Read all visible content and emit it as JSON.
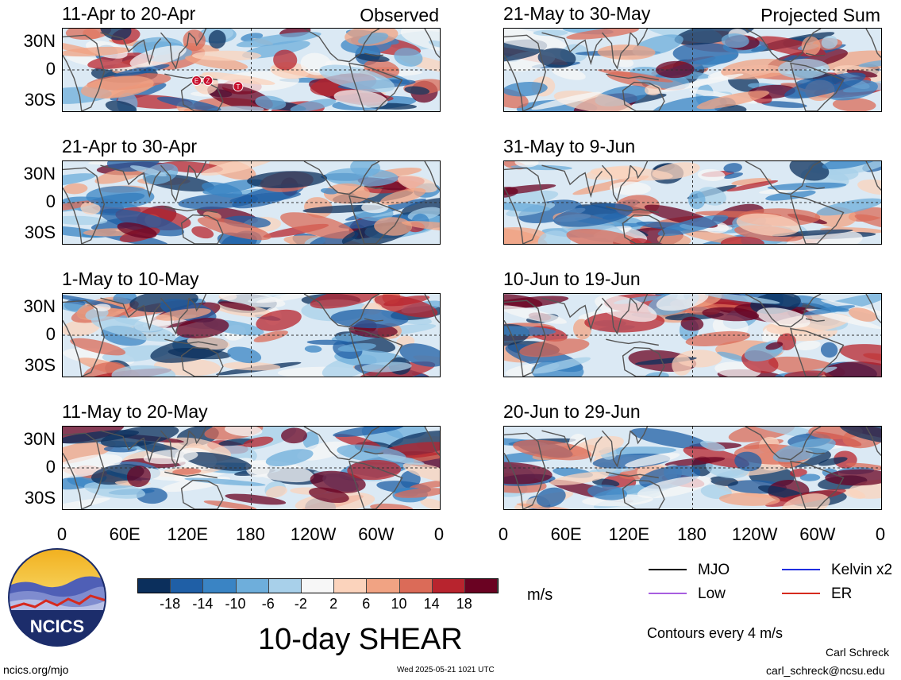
{
  "panels": [
    {
      "id": "p1",
      "title": "11-Apr to 20-Apr",
      "tag": "Observed",
      "storms": [
        "E",
        "Z",
        "T"
      ]
    },
    {
      "id": "p2",
      "title": "21-Apr to 30-Apr",
      "tag": ""
    },
    {
      "id": "p3",
      "title": "1-May to 10-May",
      "tag": ""
    },
    {
      "id": "p4",
      "title": "11-May to 20-May",
      "tag": ""
    },
    {
      "id": "p5",
      "title": "21-May to 30-May",
      "tag": "Projected Sum"
    },
    {
      "id": "p6",
      "title": "31-May to 9-Jun",
      "tag": ""
    },
    {
      "id": "p7",
      "title": "10-Jun to 19-Jun",
      "tag": ""
    },
    {
      "id": "p8",
      "title": "20-Jun to 29-Jun",
      "tag": ""
    }
  ],
  "y_ticks": [
    "30N",
    "0",
    "30S"
  ],
  "x_ticks": [
    "0",
    "60E",
    "120E",
    "180",
    "120W",
    "60W",
    "0"
  ],
  "colorbar": {
    "unit": "m/s",
    "labels": [
      "-18",
      "-14",
      "-10",
      "-6",
      "-2",
      "2",
      "6",
      "10",
      "14",
      "18"
    ],
    "colors": [
      "#0b2f5c",
      "#1f5fa6",
      "#3a84c4",
      "#6eaedb",
      "#a8d0ea",
      "#f7f7f7",
      "#fbd3bc",
      "#f1a383",
      "#db6b58",
      "#b8242e",
      "#6a0222"
    ]
  },
  "legend": {
    "items": [
      {
        "label": "MJO",
        "color": "#000000"
      },
      {
        "label": "Kelvin x2",
        "color": "#1f2ee0"
      },
      {
        "label": "Low",
        "color": "#a75ee0"
      },
      {
        "label": "ER",
        "color": "#d62a1e"
      }
    ],
    "contours": "Contours every 4 m/s"
  },
  "main_title": "10-day SHEAR",
  "logo_text": "NCICS",
  "footer": {
    "left": "ncics.org/mjo",
    "center": "Wed 2025-05-21 1021 UTC",
    "author": "Carl Schreck",
    "email": "carl_schreck@ncsu.edu"
  }
}
